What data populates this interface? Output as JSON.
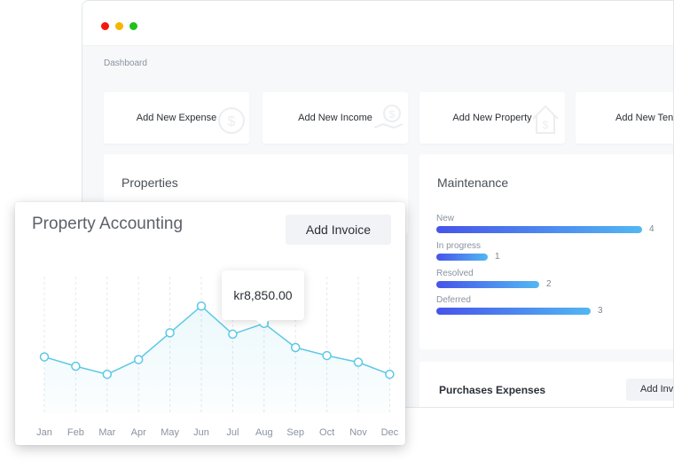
{
  "window": {
    "breadcrumb": "Dashboard"
  },
  "actions": [
    {
      "label": "Add New Expense",
      "icon": "money-coin-icon"
    },
    {
      "label": "Add New Income",
      "icon": "money-hand-icon"
    },
    {
      "label": "Add New Property",
      "icon": "house-money-icon"
    },
    {
      "label": "Add New Tena",
      "icon": "house-icon"
    }
  ],
  "properties": {
    "title": "Properties"
  },
  "maintenance": {
    "title": "Maintenance",
    "items": [
      {
        "label": "New",
        "count": "4",
        "value": 4
      },
      {
        "label": "In progress",
        "count": "1",
        "value": 1
      },
      {
        "label": "Resolved",
        "count": "2",
        "value": 2
      },
      {
        "label": "Deferred",
        "count": "3",
        "value": 3
      }
    ]
  },
  "purchases": {
    "title": "Purchases Expenses",
    "button": "Add Invi"
  },
  "accounting": {
    "title": "Property Accounting",
    "add_invoice": "Add Invoice",
    "tooltip": "kr8,850.00"
  },
  "chart_data": {
    "type": "line",
    "categories": [
      "Jan",
      "Feb",
      "Mar",
      "Apr",
      "May",
      "Jun",
      "Jul",
      "Aug",
      "Sep",
      "Oct",
      "Nov",
      "Dec"
    ],
    "values": [
      42,
      35,
      29,
      40,
      60,
      80,
      59,
      67,
      49,
      43,
      38,
      29
    ],
    "highlight_index": 7,
    "ylim": [
      0,
      100
    ],
    "line_color": "#5cc8e6",
    "grid": true
  }
}
